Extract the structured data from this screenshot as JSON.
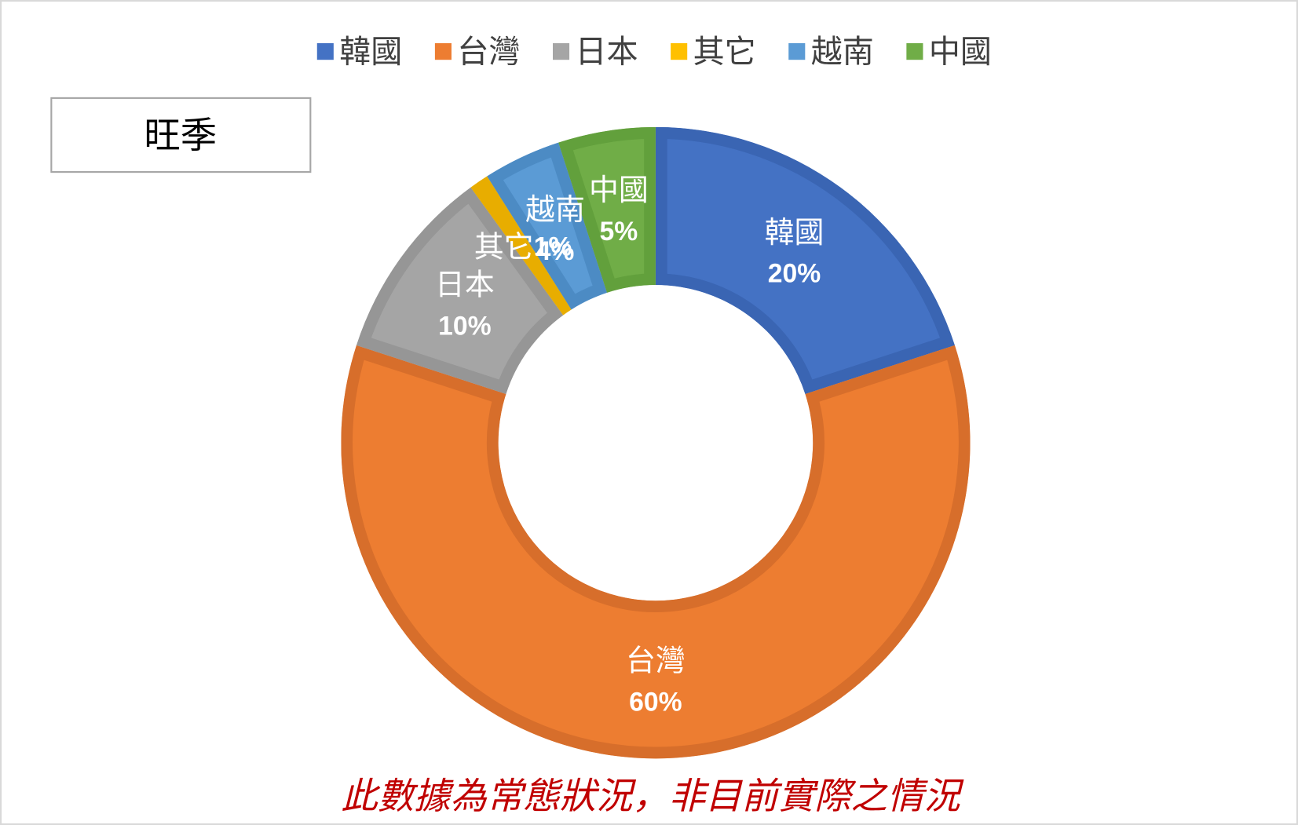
{
  "tag_box": {
    "text": "旺季"
  },
  "footnote": {
    "text": "此數據為常態狀況，非目前實際之情況",
    "color": "#C00000"
  },
  "chart_data": {
    "type": "pie",
    "donut": true,
    "categories": [
      "韓國",
      "台灣",
      "日本",
      "其它",
      "越南",
      "中國"
    ],
    "values": [
      20,
      60,
      10,
      1,
      4,
      5
    ],
    "unit": "%",
    "data_labels_shown": true,
    "colors": [
      "#4472C4",
      "#ED7D31",
      "#A5A5A5",
      "#FFC000",
      "#5B9BD5",
      "#70AD47"
    ],
    "border_colors": [
      "#3A65B3",
      "#D76E2B",
      "#969696",
      "#E8AD00",
      "#4C8BC4",
      "#62A03C"
    ],
    "label_color": "#FFFFFF",
    "legend": {
      "position": "top",
      "text_color": "#404040"
    }
  }
}
